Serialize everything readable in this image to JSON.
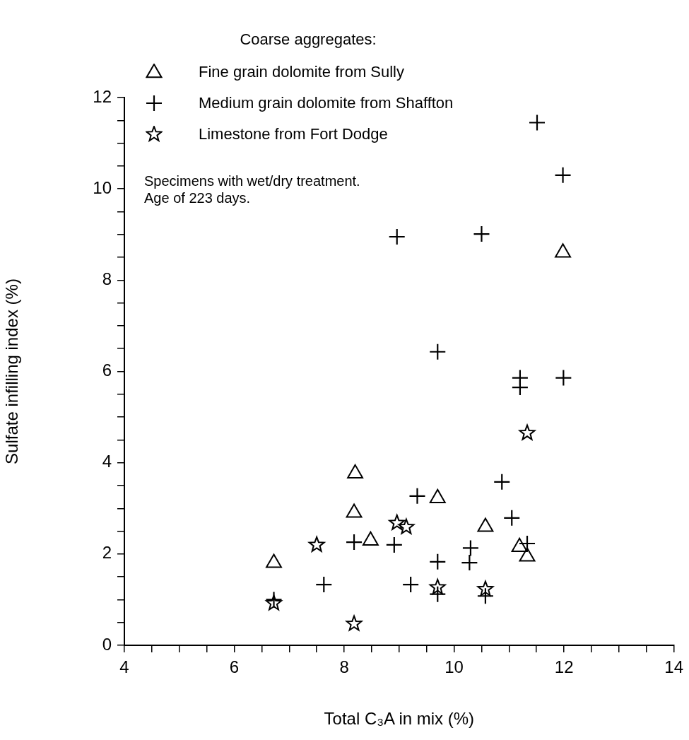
{
  "chart_data": {
    "type": "scatter",
    "xlabel": "Total C₃A in mix (%)",
    "ylabel": "Sulfate infilling index (%)",
    "legend_title": "Coarse aggregates:",
    "legend": "top left",
    "grid": false,
    "annotations": [
      "Specimens with wet/dry treatment.",
      "Age of 223 days."
    ],
    "xlim": [
      4,
      14
    ],
    "ylim": [
      0,
      12
    ],
    "xticks": [
      4,
      {
        "value": 4.5,
        "label": null
      },
      {
        "value": 5,
        "label": null
      },
      {
        "value": 5.5,
        "label": null
      },
      6,
      {
        "value": 6.5,
        "label": null
      },
      {
        "value": 7,
        "label": null
      },
      {
        "value": 7.5,
        "label": null
      },
      8,
      {
        "value": 8.5,
        "label": null
      },
      {
        "value": 9,
        "label": null
      },
      {
        "value": 9.5,
        "label": null
      },
      10,
      {
        "value": 10.5,
        "label": null
      },
      {
        "value": 11,
        "label": null
      },
      {
        "value": 11.5,
        "label": null
      },
      12,
      {
        "value": 12.5,
        "label": null
      },
      {
        "value": 13,
        "label": null
      },
      {
        "value": 13.5,
        "label": null
      },
      14
    ],
    "yticks": [
      0,
      {
        "value": 0.5,
        "label": null
      },
      {
        "value": 1,
        "label": null
      },
      {
        "value": 1.5,
        "label": null
      },
      2,
      {
        "value": 2.5,
        "label": null
      },
      {
        "value": 3,
        "label": null
      },
      {
        "value": 3.5,
        "label": null
      },
      4,
      {
        "value": 4.5,
        "label": null
      },
      {
        "value": 5,
        "label": null
      },
      {
        "value": 5.5,
        "label": null
      },
      6,
      {
        "value": 6.5,
        "label": null
      },
      {
        "value": 7,
        "label": null
      },
      {
        "value": 7.5,
        "label": null
      },
      8,
      {
        "value": 8.5,
        "label": null
      },
      {
        "value": 9,
        "label": null
      },
      {
        "value": 9.5,
        "label": null
      },
      10,
      {
        "value": 10.5,
        "label": null
      },
      {
        "value": 11,
        "label": null
      },
      {
        "value": 11.5,
        "label": null
      },
      12
    ],
    "series": [
      {
        "name": "Fine grain dolomite from Sully",
        "color": "#000000",
        "marker": "triangle",
        "x": [
          6.72,
          8.2,
          8.18,
          8.48,
          9.7,
          10.57,
          11.19,
          11.33,
          11.98
        ],
        "values": [
          1.82,
          3.78,
          2.92,
          2.31,
          3.24,
          2.61,
          2.17,
          1.96,
          8.62
        ]
      },
      {
        "name": "Medium grain dolomite from Shaffton",
        "color": "#000000",
        "marker": "cross",
        "x": [
          6.72,
          7.63,
          8.18,
          8.91,
          9.33,
          9.21,
          9.7,
          9.7,
          10.3,
          10.28,
          10.57,
          10.87,
          11.05,
          11.33,
          11.51,
          11.98,
          8.96,
          10.5,
          9.7,
          11.2,
          11.2,
          11.99
        ],
        "values": [
          1.0,
          1.33,
          2.26,
          2.2,
          3.27,
          1.33,
          1.83,
          1.12,
          2.13,
          1.81,
          1.08,
          3.58,
          2.79,
          2.23,
          11.45,
          10.3,
          8.95,
          9.01,
          6.43,
          5.86,
          5.65,
          5.86
        ]
      },
      {
        "name": "Limestone from Fort Dodge",
        "color": "#000000",
        "marker": "star",
        "x": [
          6.72,
          7.5,
          8.18,
          8.96,
          9.13,
          9.7,
          10.57,
          11.33
        ],
        "values": [
          0.92,
          2.2,
          0.47,
          2.68,
          2.59,
          1.27,
          1.23,
          4.65
        ]
      }
    ]
  }
}
